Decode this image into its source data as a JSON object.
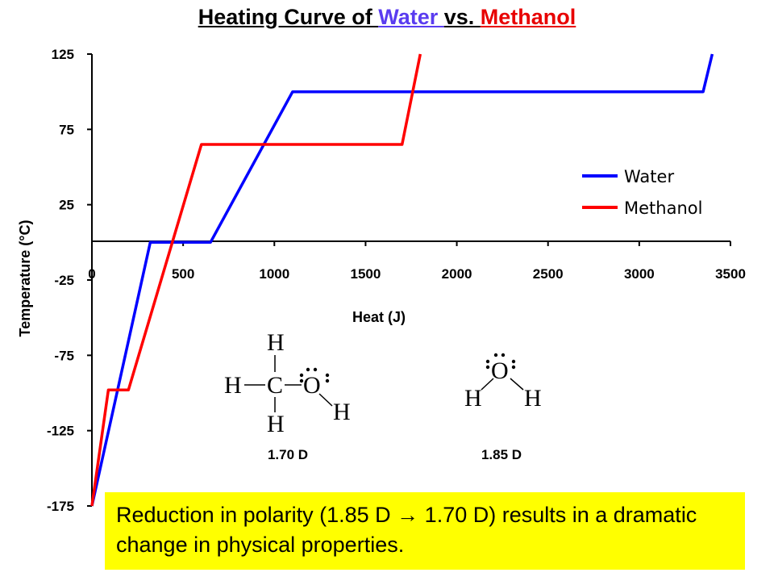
{
  "title": {
    "prefix": "Heating Curve of ",
    "water": "Water ",
    "mid": "vs. ",
    "methanol": "Methanol",
    "colors": {
      "text": "#000000",
      "water": "#5a3cf0",
      "methanol": "#e80000"
    }
  },
  "chart_data": {
    "type": "line",
    "xlabel": "Heat (J)",
    "ylabel": "Temperature (°C)",
    "xlim": [
      0,
      3500
    ],
    "ylim": [
      -175,
      125
    ],
    "xticks": [
      0,
      500,
      1000,
      1500,
      2000,
      2500,
      3000,
      3500
    ],
    "yticks": [
      125,
      75,
      25,
      -25,
      -75,
      -125,
      -175
    ],
    "legend_position": "right",
    "series": [
      {
        "name": "Water",
        "color": "#0000ff",
        "points": [
          [
            0,
            -175
          ],
          [
            320,
            0
          ],
          [
            650,
            0
          ],
          [
            1100,
            100
          ],
          [
            3350,
            100
          ],
          [
            3400,
            125
          ]
        ]
      },
      {
        "name": "Methanol",
        "color": "#ff0000",
        "points": [
          [
            0,
            -175
          ],
          [
            90,
            -98
          ],
          [
            200,
            -98
          ],
          [
            600,
            65
          ],
          [
            1700,
            65
          ],
          [
            1800,
            125
          ]
        ]
      }
    ]
  },
  "molecules": [
    {
      "name": "methanol",
      "atoms": {
        "h": "H",
        "c": "C",
        "o": "O"
      },
      "dipole": "1.70 D"
    },
    {
      "name": "water",
      "atoms": {
        "h": "H",
        "o": "O"
      },
      "dipole": "1.85 D"
    }
  ],
  "callout": {
    "text": "Reduction in polarity (1.85 D → 1.70 D) results in a dramatic change in physical properties.",
    "background": "#ffff00"
  }
}
